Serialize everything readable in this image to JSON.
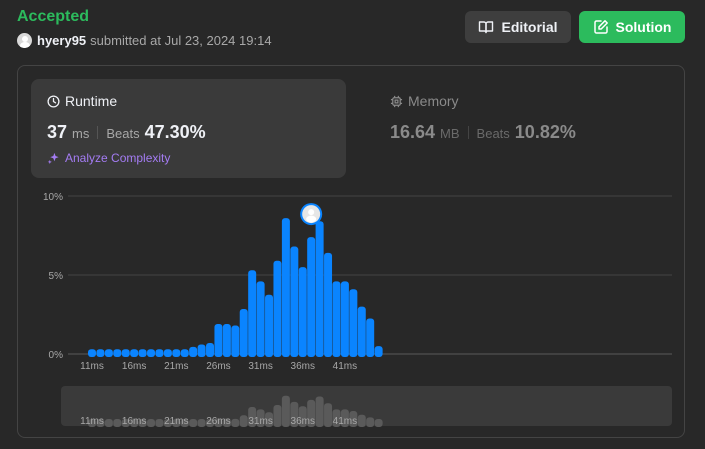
{
  "status": "Accepted",
  "submission": {
    "username": "hyery95",
    "submitted_text": "submitted at Jul 23, 2024 19:14"
  },
  "buttons": {
    "editorial": "Editorial",
    "solution": "Solution"
  },
  "runtime": {
    "label": "Runtime",
    "value": "37",
    "unit": "ms",
    "beats_label": "Beats",
    "beats_pct": "47.30%",
    "analyze_label": "Analyze Complexity"
  },
  "memory": {
    "label": "Memory",
    "value": "16.64",
    "unit": "MB",
    "beats_label": "Beats",
    "beats_pct": "10.82%"
  },
  "colors": {
    "accepted": "#2cbb5d",
    "bar": "#0a84ff",
    "analyze": "#a47cf3"
  },
  "chart_data": {
    "type": "bar",
    "x": [
      11,
      12,
      13,
      14,
      15,
      16,
      17,
      18,
      19,
      20,
      21,
      22,
      23,
      24,
      25,
      26,
      27,
      28,
      29,
      30,
      31,
      32,
      33,
      34,
      35,
      36,
      37,
      38,
      39,
      40,
      41,
      42,
      43,
      44,
      45
    ],
    "values": [
      0.3,
      0.3,
      0.3,
      0.3,
      0.3,
      0.3,
      0.3,
      0.3,
      0.3,
      0.3,
      0.3,
      0.3,
      0.45,
      0.6,
      0.7,
      1.9,
      1.9,
      1.8,
      2.85,
      5.3,
      4.6,
      3.75,
      5.9,
      8.6,
      6.8,
      5.5,
      7.4,
      8.4,
      6.4,
      4.6,
      4.6,
      4.1,
      3.0,
      2.25,
      0.5
    ],
    "highlight_x": 37,
    "ylim": [
      0,
      10
    ],
    "y_ticks": [
      "0%",
      "5%",
      "10%"
    ],
    "y_tick_values": [
      0,
      5,
      10
    ],
    "x_ticks": [
      "11ms",
      "16ms",
      "21ms",
      "26ms",
      "31ms",
      "36ms",
      "41ms"
    ],
    "x_tick_values": [
      11,
      16,
      21,
      26,
      31,
      36,
      41
    ]
  }
}
